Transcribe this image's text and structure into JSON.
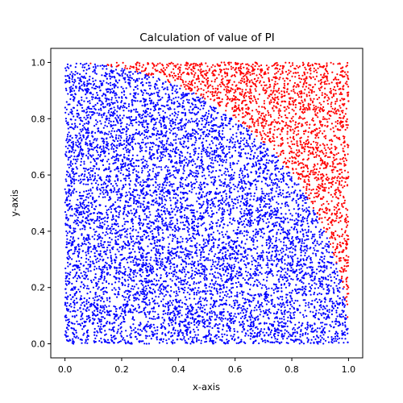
{
  "chart_data": {
    "type": "scatter",
    "title": "Calculation of value of PI",
    "xlabel": "x-axis",
    "ylabel": "y-axis",
    "xlim": [
      -0.05,
      1.05
    ],
    "ylim": [
      -0.05,
      1.05
    ],
    "xticks": [
      0.0,
      0.2,
      0.4,
      0.6,
      0.8,
      1.0
    ],
    "yticks": [
      0.0,
      0.2,
      0.4,
      0.6,
      0.8,
      1.0
    ],
    "xtick_labels": [
      "0.0",
      "0.2",
      "0.4",
      "0.6",
      "0.8",
      "1.0"
    ],
    "ytick_labels": [
      "0.0",
      "0.2",
      "0.4",
      "0.6",
      "0.8",
      "1.0"
    ],
    "grid": false,
    "series": [
      {
        "region": "inside unit quarter circle (x² + y² ≤ 1)",
        "color": "#0000ff"
      },
      {
        "region": "outside unit quarter circle (x² + y² > 1)",
        "color": "#ff0000"
      }
    ],
    "point_domain": {
      "x": [
        0,
        1
      ],
      "y": [
        0,
        1
      ]
    }
  }
}
